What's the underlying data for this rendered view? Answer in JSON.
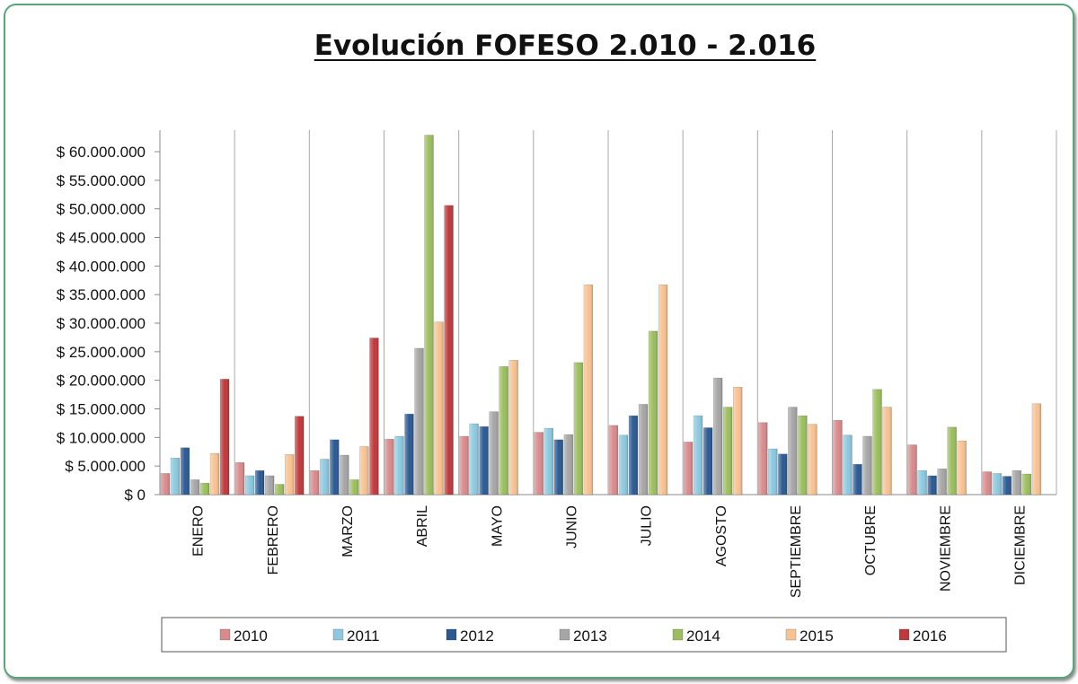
{
  "chart_data": {
    "type": "bar",
    "title": "Evolución FOFESO 2.010 - 2.016",
    "xlabel": "",
    "ylabel": "",
    "ylim": [
      0,
      60000000
    ],
    "yticks": [
      0,
      5000000,
      10000000,
      15000000,
      20000000,
      25000000,
      30000000,
      35000000,
      40000000,
      45000000,
      50000000,
      55000000,
      60000000
    ],
    "ytick_labels": [
      "$ 0",
      "$ 5.000.000",
      "$ 10.000.000",
      "$ 15.000.000",
      "$ 20.000.000",
      "$ 25.000.000",
      "$ 30.000.000",
      "$ 35.000.000",
      "$ 40.000.000",
      "$ 45.000.000",
      "$ 50.000.000",
      "$ 55.000.000",
      "$ 60.000.000"
    ],
    "categories": [
      "ENERO",
      "FEBRERO",
      "MARZO",
      "ABRIL",
      "MAYO",
      "JUNIO",
      "JULIO",
      "AGOSTO",
      "SEPTIEMBRE",
      "OCTUBRE",
      "NOVIEMBRE",
      "DICIEMBRE"
    ],
    "legend_position": "bottom",
    "grid": "vertical category separators",
    "series": [
      {
        "name": "2010",
        "color": "#d98a8c",
        "values": [
          3700000,
          5600000,
          4200000,
          9700000,
          10200000,
          10900000,
          12100000,
          9200000,
          12600000,
          13000000,
          8700000,
          4000000
        ]
      },
      {
        "name": "2011",
        "color": "#8cc9e0",
        "values": [
          6400000,
          3300000,
          6200000,
          10200000,
          12400000,
          11600000,
          10400000,
          13800000,
          8000000,
          10400000,
          4200000,
          3700000
        ]
      },
      {
        "name": "2012",
        "color": "#2b5a93",
        "values": [
          8200000,
          4200000,
          9600000,
          14100000,
          11900000,
          9600000,
          13800000,
          11700000,
          7100000,
          5300000,
          3300000,
          3200000
        ]
      },
      {
        "name": "2013",
        "color": "#a6a6a6",
        "values": [
          2600000,
          3300000,
          6900000,
          25600000,
          14500000,
          10500000,
          15800000,
          20400000,
          15300000,
          10200000,
          4500000,
          4200000
        ]
      },
      {
        "name": "2014",
        "color": "#9bbf5d",
        "values": [
          2000000,
          1800000,
          2600000,
          62900000,
          22400000,
          23100000,
          28600000,
          15300000,
          13800000,
          18400000,
          11800000,
          3600000
        ]
      },
      {
        "name": "2015",
        "color": "#f8c291",
        "values": [
          7200000,
          7000000,
          8400000,
          30200000,
          23500000,
          36700000,
          36700000,
          18800000,
          12300000,
          15300000,
          9400000,
          15900000
        ]
      },
      {
        "name": "2016",
        "color": "#c0393b",
        "values": [
          20200000,
          13700000,
          27400000,
          50600000,
          null,
          null,
          null,
          null,
          null,
          null,
          null,
          null
        ]
      }
    ]
  }
}
